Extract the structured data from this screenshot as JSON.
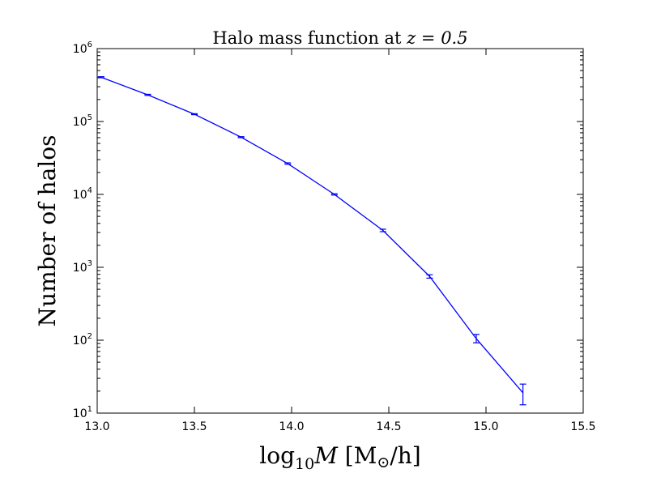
{
  "chart_data": {
    "type": "line",
    "title": "Halo mass function at z = 0.5",
    "title_parts": {
      "prefix": "Halo mass function at ",
      "var": "z",
      "eq": " = ",
      "val": "0.5"
    },
    "xlabel": "log10 M [M⊙/h]",
    "xlabel_parts": {
      "log": "log",
      "sub": "10",
      "var": "M",
      "unit_open": " [M",
      "odot": "⊙",
      "unit_close": "/h]"
    },
    "ylabel": "Number of halos",
    "xlim": [
      13.0,
      15.5
    ],
    "ylim": [
      10,
      1000000
    ],
    "yscale": "log",
    "x_ticks": [
      "13.0",
      "13.5",
      "14.0",
      "14.5",
      "15.0",
      "15.5"
    ],
    "y_ticks": [
      {
        "value": 10,
        "base": "10",
        "exp": "1"
      },
      {
        "value": 100,
        "base": "10",
        "exp": "2"
      },
      {
        "value": 1000,
        "base": "10",
        "exp": "3"
      },
      {
        "value": 10000,
        "base": "10",
        "exp": "4"
      },
      {
        "value": 100000,
        "base": "10",
        "exp": "5"
      },
      {
        "value": 1000000,
        "base": "10",
        "exp": "6"
      }
    ],
    "grid": false,
    "color": "#0000ff",
    "series": [
      {
        "x": [
          13.02,
          13.26,
          13.5,
          13.74,
          13.98,
          14.22,
          14.47,
          14.71,
          14.95,
          15.19
        ],
        "y": [
          405000,
          232000,
          126000,
          61000,
          26500,
          10000,
          3200,
          750,
          105,
          19
        ],
        "yerr_low": [
          398000,
          228000,
          124000,
          60000,
          25900,
          9800,
          3080,
          710,
          92,
          13
        ],
        "yerr_high": [
          412000,
          236000,
          128000,
          62000,
          27100,
          10200,
          3330,
          790,
          120,
          25
        ]
      }
    ]
  }
}
